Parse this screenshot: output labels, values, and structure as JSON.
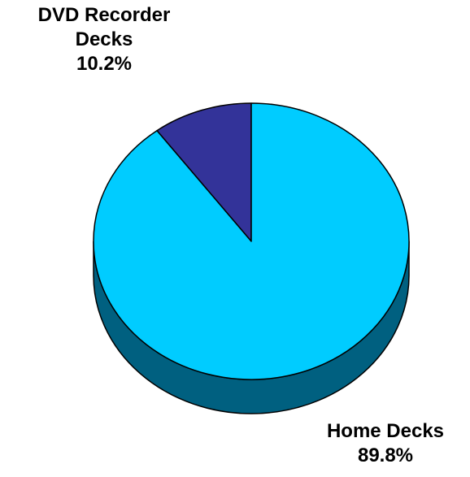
{
  "chart_data": {
    "type": "pie",
    "style": "3d",
    "slices": [
      {
        "label_lines": [
          "DVD Recorder",
          "Decks"
        ],
        "value": 10.2,
        "value_label": "10.2%",
        "color": "#333399"
      },
      {
        "label_lines": [
          "Home Decks"
        ],
        "value": 89.8,
        "value_label": "89.8%",
        "color": "#00ccff"
      }
    ],
    "side_colors": {
      "Home Decks": "#006080"
    },
    "outline_color": "#000000"
  }
}
